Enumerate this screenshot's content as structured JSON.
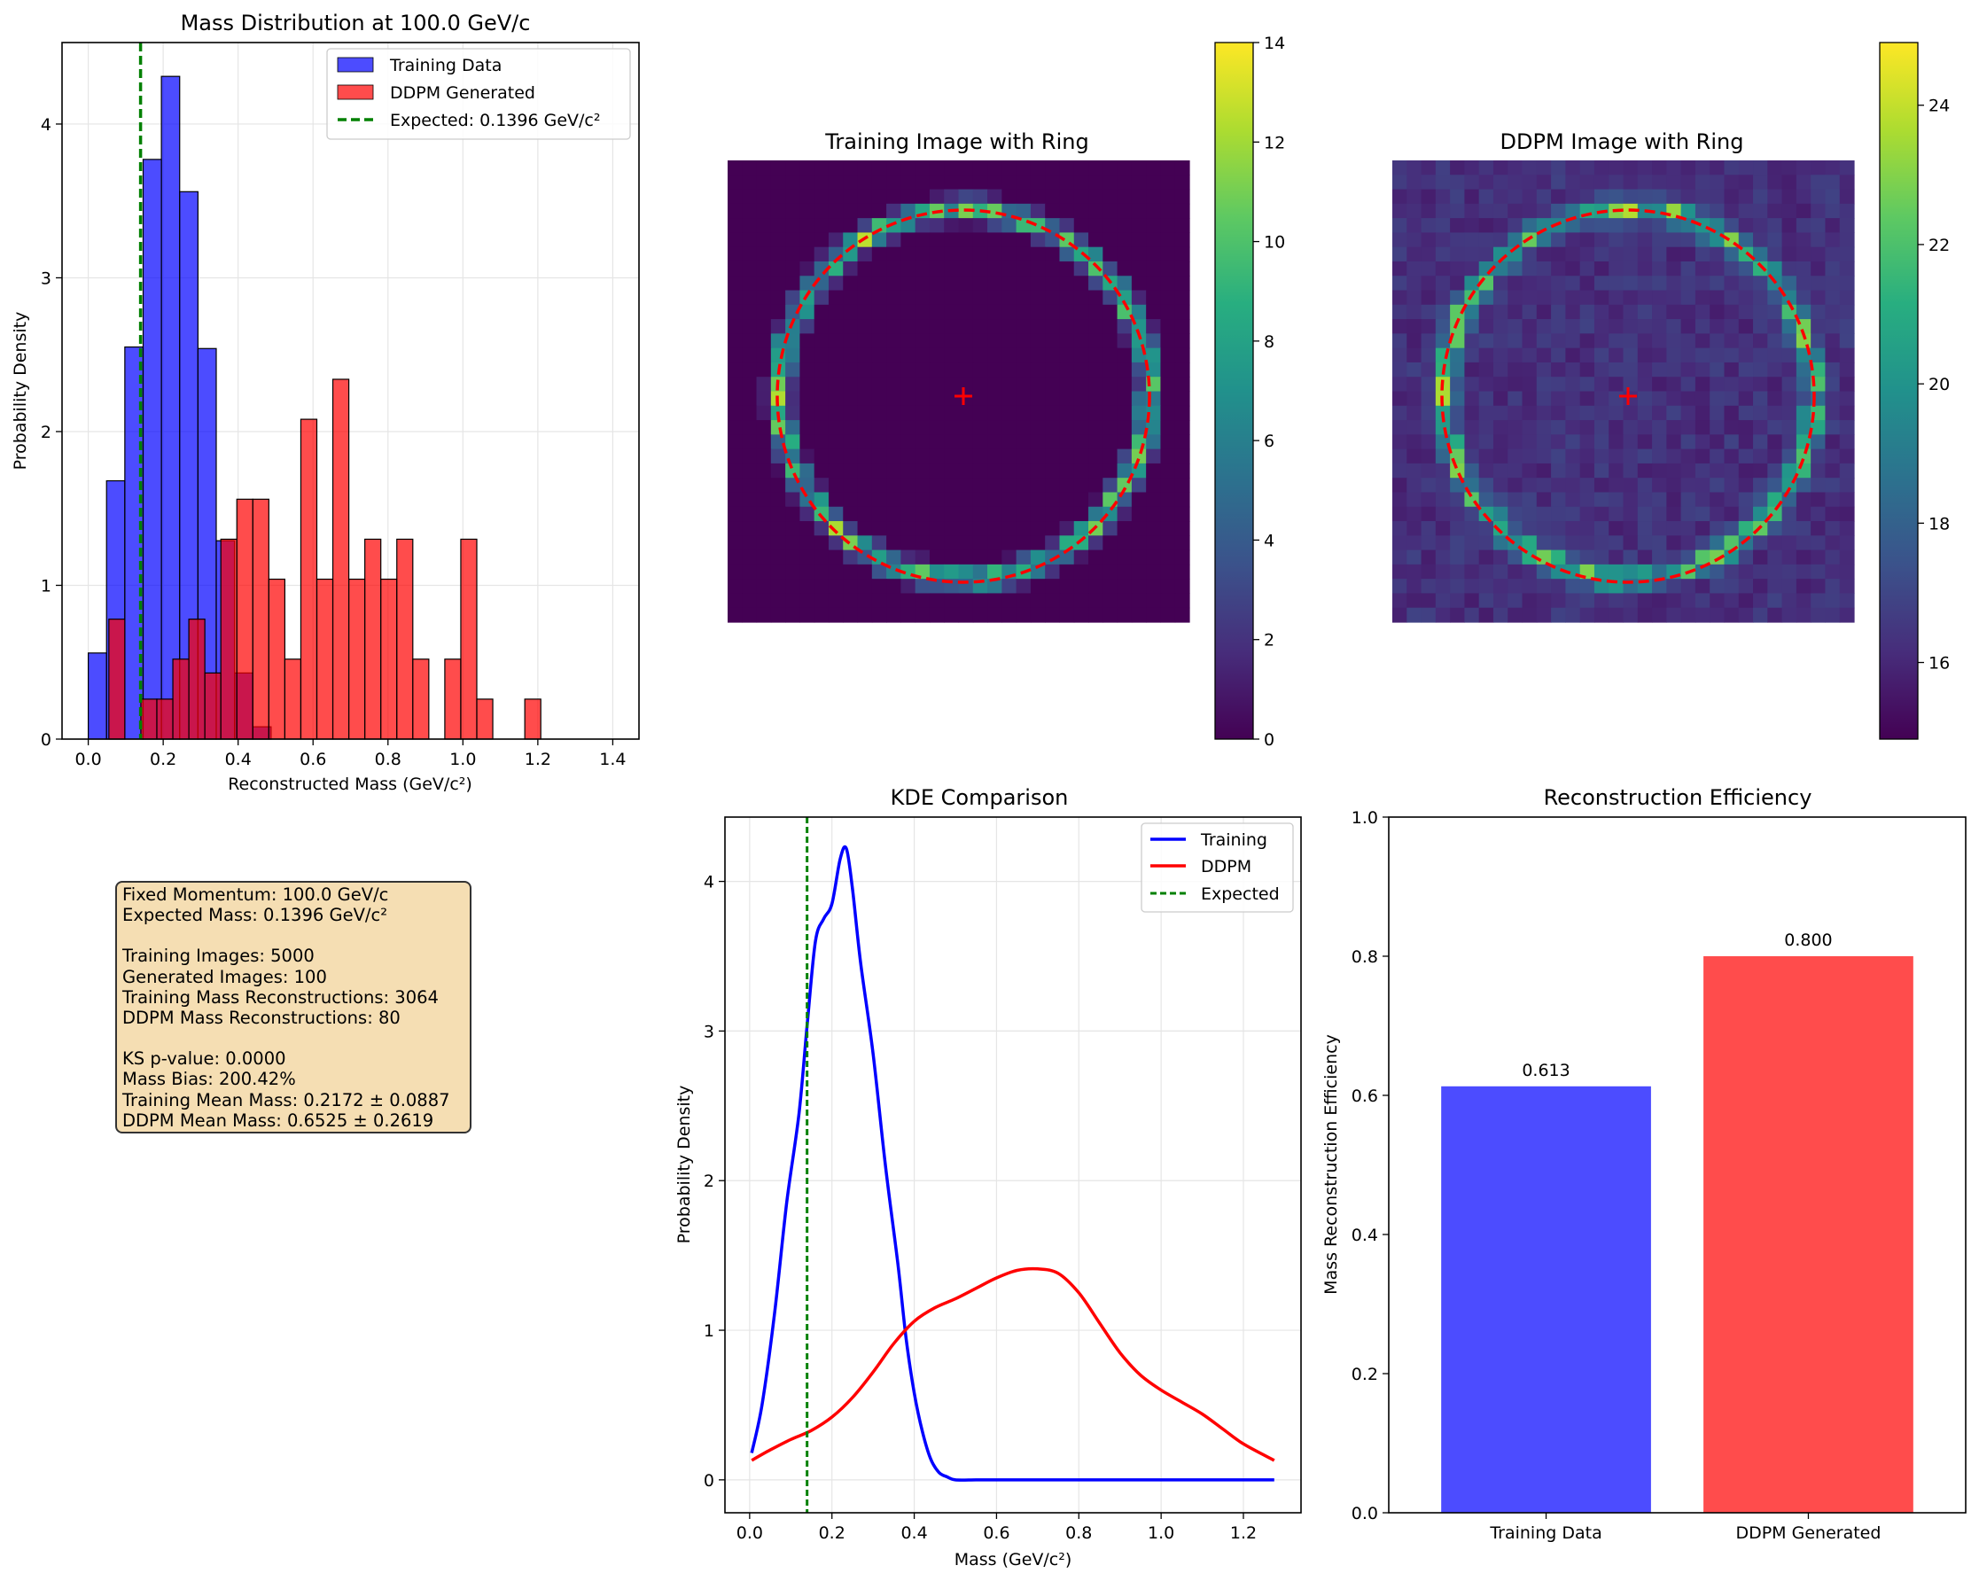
{
  "palette": {
    "training": "#0000ff",
    "ddpm": "#ff0000",
    "expected": "#008000",
    "grid": "#e5e5e5"
  },
  "chart_data": [
    {
      "id": "hist",
      "type": "bar",
      "title": "Mass Distribution at 100.0 GeV/c",
      "xlabel": "Reconstructed Mass (GeV/c²)",
      "ylabel": "Probability Density",
      "xlim": [
        -0.07,
        1.47
      ],
      "ylim": [
        0,
        4.53
      ],
      "xticks": [
        0.0,
        0.2,
        0.4,
        0.6,
        0.8,
        1.0,
        1.2,
        1.4
      ],
      "xtick_labels": [
        "0.0",
        "0.2",
        "0.4",
        "0.6",
        "0.8",
        "1.0",
        "1.2",
        "1.4"
      ],
      "yticks": [
        0,
        1,
        2,
        3,
        4
      ],
      "ytick_labels": [
        "0",
        "1",
        "2",
        "3",
        "4"
      ],
      "grid": true,
      "legend_position": "top-right",
      "series": [
        {
          "name": "Training Data",
          "color": "#0000ff",
          "opacity": 0.7,
          "bin_start": 0.0,
          "bin_width": 0.0488,
          "values": [
            0.56,
            1.68,
            2.55,
            3.77,
            4.31,
            3.56,
            2.54,
            1.29,
            0.43,
            0.08,
            0,
            0,
            0,
            0,
            0,
            0,
            0,
            0,
            0,
            0,
            0,
            0,
            0,
            0,
            0,
            0,
            0,
            0,
            0
          ]
        },
        {
          "name": "DDPM Generated",
          "color": "#ff0000",
          "opacity": 0.7,
          "bin_start": 0.055,
          "bin_width": 0.0427,
          "values": [
            0.78,
            0,
            0.26,
            0.26,
            0.52,
            0.78,
            0.43,
            1.3,
            1.56,
            1.56,
            1.04,
            0.52,
            2.08,
            1.04,
            2.34,
            1.04,
            1.3,
            1.04,
            1.3,
            0.52,
            0,
            0.52,
            1.3,
            0.26,
            0,
            0,
            0.26
          ]
        }
      ],
      "vline": {
        "name": "Expected: 0.1396 GeV/c²",
        "x": 0.1396,
        "color": "#008000"
      }
    },
    {
      "id": "img_train",
      "type": "heatmap",
      "title": "Training Image with Ring",
      "colorbar_range": [
        0,
        14
      ],
      "colorbar_ticks": [
        0,
        2,
        4,
        6,
        8,
        10,
        12,
        14
      ],
      "colorbar_tick_labels": [
        "0",
        "2",
        "4",
        "6",
        "8",
        "10",
        "12",
        "14"
      ],
      "grid_size": 32,
      "ring_center": [
        16.4,
        16.2
      ],
      "ring_radius": 12.8,
      "background_level": 0,
      "ring_level": 9,
      "background_noise": 0
    },
    {
      "id": "img_ddpm",
      "type": "heatmap",
      "title": "DDPM Image with Ring",
      "colorbar_range": [
        14.9,
        24.9
      ],
      "colorbar_ticks": [
        16,
        18,
        20,
        22,
        24
      ],
      "colorbar_tick_labels": [
        "16",
        "18",
        "20",
        "22",
        "24"
      ],
      "grid_size": 32,
      "ring_center": [
        16.4,
        16.2
      ],
      "ring_radius": 12.8,
      "background_level": 16.3,
      "ring_level": 21.5,
      "background_noise": 0.6
    },
    {
      "id": "kde",
      "type": "line",
      "title": "KDE Comparison",
      "xlabel": "Mass (GeV/c²)",
      "ylabel": "Probability Density",
      "xlim": [
        -0.06,
        1.34
      ],
      "ylim": [
        -0.22,
        4.43
      ],
      "xticks": [
        0.0,
        0.2,
        0.4,
        0.6,
        0.8,
        1.0,
        1.2
      ],
      "xtick_labels": [
        "0.0",
        "0.2",
        "0.4",
        "0.6",
        "0.8",
        "1.0",
        "1.2"
      ],
      "yticks": [
        0,
        1,
        2,
        3,
        4
      ],
      "ytick_labels": [
        "0",
        "1",
        "2",
        "3",
        "4"
      ],
      "grid": true,
      "legend_position": "top-right",
      "series": [
        {
          "name": "Training",
          "color": "#0000ff",
          "x": [
            0.005,
            0.03,
            0.06,
            0.09,
            0.12,
            0.14,
            0.16,
            0.18,
            0.2,
            0.22,
            0.235,
            0.25,
            0.27,
            0.3,
            0.33,
            0.36,
            0.38,
            0.4,
            0.42,
            0.44,
            0.46,
            0.48,
            0.5,
            0.55,
            0.6,
            0.8,
            1.0,
            1.275
          ],
          "y": [
            0.18,
            0.5,
            1.1,
            1.85,
            2.45,
            3.05,
            3.6,
            3.75,
            3.85,
            4.15,
            4.22,
            3.95,
            3.45,
            2.85,
            2.1,
            1.45,
            0.95,
            0.58,
            0.32,
            0.14,
            0.05,
            0.02,
            0.0,
            0.0,
            0.0,
            0.0,
            0.0,
            0.0
          ]
        },
        {
          "name": "DDPM",
          "color": "#ff0000",
          "x": [
            0.005,
            0.05,
            0.1,
            0.15,
            0.2,
            0.25,
            0.3,
            0.35,
            0.4,
            0.45,
            0.5,
            0.55,
            0.6,
            0.65,
            0.7,
            0.75,
            0.8,
            0.85,
            0.9,
            0.95,
            1.0,
            1.05,
            1.1,
            1.15,
            1.2,
            1.275
          ],
          "y": [
            0.13,
            0.2,
            0.27,
            0.33,
            0.42,
            0.55,
            0.72,
            0.91,
            1.06,
            1.15,
            1.21,
            1.28,
            1.35,
            1.4,
            1.41,
            1.38,
            1.25,
            1.05,
            0.85,
            0.7,
            0.6,
            0.52,
            0.44,
            0.34,
            0.24,
            0.13
          ]
        }
      ],
      "vline": {
        "name": "Expected",
        "x": 0.1396,
        "color": "#008000"
      }
    },
    {
      "id": "eff",
      "type": "bar",
      "title": "Reconstruction Efficiency",
      "ylabel": "Mass Reconstruction Efficiency",
      "ylim": [
        0,
        1.0
      ],
      "yticks": [
        0.0,
        0.2,
        0.4,
        0.6,
        0.8,
        1.0
      ],
      "ytick_labels": [
        "0.0",
        "0.2",
        "0.4",
        "0.6",
        "0.8",
        "1.0"
      ],
      "categories": [
        "Training Data",
        "DDPM Generated"
      ],
      "values": [
        0.613,
        0.8
      ],
      "value_labels": [
        "0.613",
        "0.800"
      ],
      "colors": [
        "#0000ff",
        "#ff0000"
      ],
      "opacity": 0.7
    }
  ],
  "info_box": {
    "lines": [
      "Fixed Momentum: 100.0 GeV/c",
      "Expected Mass: 0.1396 GeV/c²",
      "",
      "Training Images: 5000",
      "Generated Images: 100",
      "Training Mass Reconstructions: 3064",
      "DDPM Mass Reconstructions: 80",
      "",
      "KS p-value: 0.0000",
      "Mass Bias: 200.42%",
      "Training Mean Mass: 0.2172 ± 0.0887",
      "DDPM Mean Mass: 0.6525 ± 0.2619"
    ]
  }
}
